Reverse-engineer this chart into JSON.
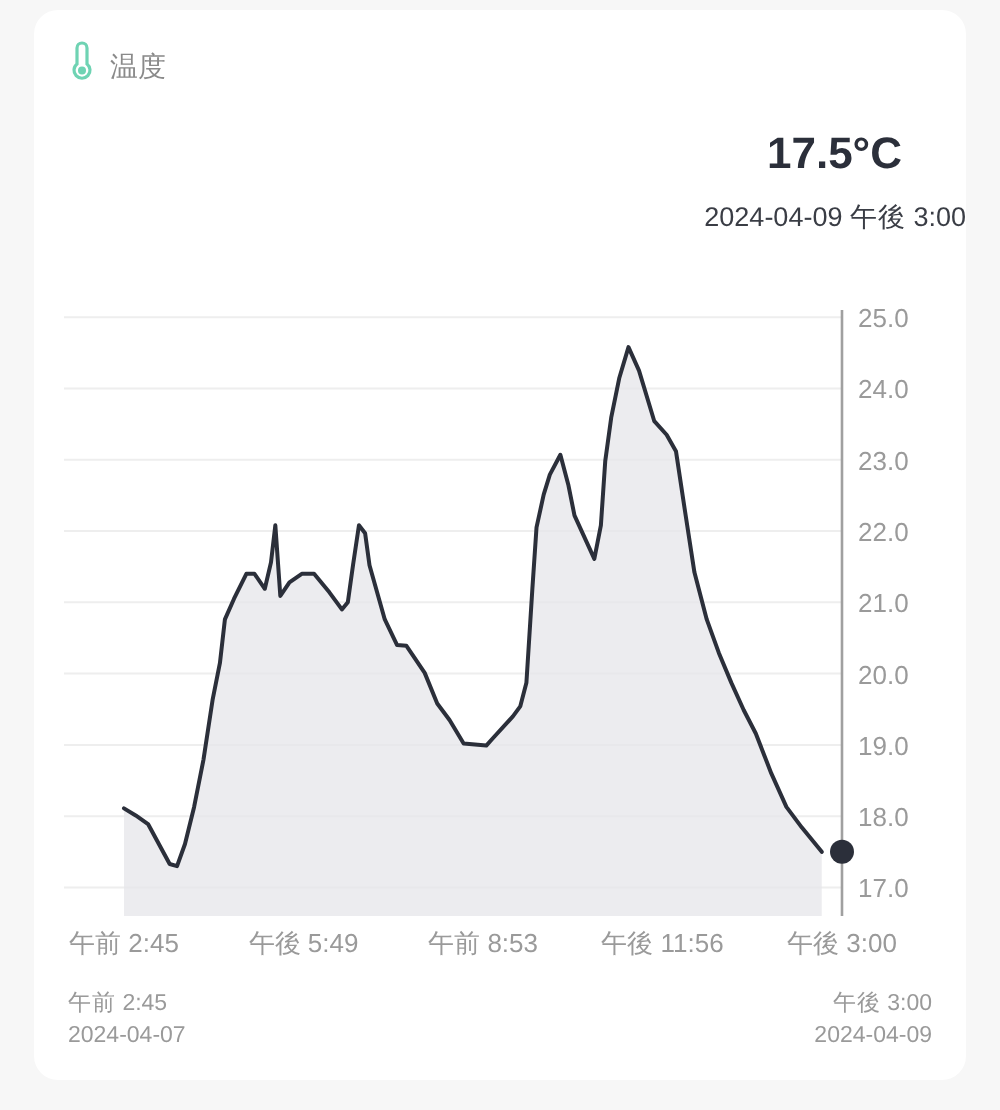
{
  "chart_data": {
    "type": "area",
    "title": "温度",
    "annotations": [
      "17.5°C",
      "2024-04-09 午後 3:00",
      "午前 2:45",
      "2024-04-07",
      "午後 3:00",
      "2024-04-09"
    ],
    "x": [
      "2024-04-07T02:45",
      "2024-04-07T03:44",
      "2024-04-07T04:46",
      "2024-04-07T06:35",
      "2024-04-07T07:12",
      "2024-04-07T07:52",
      "2024-04-07T08:38",
      "2024-04-07T09:25",
      "2024-04-07T10:11",
      "2024-04-07T10:48",
      "2024-04-07T11:13",
      "2024-04-07T11:59",
      "2024-04-07T13:01",
      "2024-04-07T13:42",
      "2024-04-07T14:34",
      "2024-04-07T15:05",
      "2024-04-07T15:27",
      "2024-04-07T15:52",
      "2024-04-07T16:38",
      "2024-04-07T17:40",
      "2024-04-07T18:42",
      "2024-04-07T19:59",
      "2024-04-07T21:02",
      "2024-04-07T21:32",
      "2024-04-07T21:58",
      "2024-04-07T22:28",
      "2024-04-07T22:59",
      "2024-04-07T23:21",
      "2024-04-08T00:38",
      "2024-04-08T01:40",
      "2024-04-08T02:27",
      "2024-04-08T03:59",
      "2024-04-08T05:02",
      "2024-04-08T06:04",
      "2024-04-08T07:15",
      "2024-04-08T09:09",
      "2024-04-08T09:41",
      "2024-04-08T11:23",
      "2024-04-08T12:00",
      "2024-04-08T12:31",
      "2024-04-08T13:01",
      "2024-04-08T13:22",
      "2024-04-08T13:58",
      "2024-04-08T14:29",
      "2024-04-08T15:22",
      "2024-04-08T16:02",
      "2024-04-08T16:33",
      "2024-04-08T17:35",
      "2024-04-08T18:13",
      "2024-04-08T18:46",
      "2024-04-08T19:08",
      "2024-04-08T19:38",
      "2024-04-08T20:19",
      "2024-04-08T21:05",
      "2024-04-08T21:58",
      "2024-04-08T23:15",
      "2024-04-09T00:17",
      "2024-04-09T01:04",
      "2024-04-09T01:50",
      "2024-04-09T02:37",
      "2024-04-09T03:39",
      "2024-04-09T04:40",
      "2024-04-09T05:43",
      "2024-04-09T06:45",
      "2024-04-09T07:46",
      "2024-04-09T09:04",
      "2024-04-09T10:20",
      "2024-04-09T11:38",
      "2024-04-09T13:18"
    ],
    "series": [
      {
        "type": "area",
        "color": "#2b2f3a",
        "values": [
          18.11,
          18.01,
          17.89,
          17.33,
          17.3,
          17.61,
          18.13,
          18.79,
          19.63,
          20.15,
          20.76,
          21.05,
          21.4,
          21.4,
          21.19,
          21.56,
          22.08,
          21.09,
          21.28,
          21.4,
          21.4,
          21.14,
          20.9,
          21.0,
          21.52,
          22.08,
          21.97,
          21.52,
          20.76,
          20.4,
          20.39,
          20.01,
          19.58,
          19.35,
          19.02,
          18.99,
          19.09,
          19.4,
          19.54,
          19.87,
          21.19,
          22.05,
          22.51,
          22.79,
          23.07,
          22.65,
          22.22,
          21.84,
          21.61,
          22.08,
          22.98,
          23.59,
          24.15,
          24.58,
          24.25,
          23.54,
          23.35,
          23.12,
          22.27,
          21.42,
          20.76,
          20.29,
          19.87,
          19.49,
          19.16,
          18.6,
          18.13,
          17.84,
          17.5
        ]
      },
      {
        "type": "scatter",
        "color": "#2b2f3a",
        "marker": "circle",
        "x": [
          "2024-04-09T15:00"
        ],
        "values": [
          17.5
        ]
      }
    ],
    "xlim": [
      "2024-04-07T02:45",
      "2024-04-09T15:00"
    ],
    "xticks": [
      {
        "value": "2024-04-07T02:45",
        "label": "午前 2:45"
      },
      {
        "value": "2024-04-07T17:49",
        "label": "午後 5:49"
      },
      {
        "value": "2024-04-08T08:53",
        "label": "午前 8:53"
      },
      {
        "value": "2024-04-08T23:56",
        "label": "午後 11:56"
      },
      {
        "value": "2024-04-09T15:00",
        "label": "午後 3:00"
      }
    ],
    "ylim": [
      16.6,
      25.1
    ],
    "yticks": [
      {
        "value": 17,
        "label": "17.0"
      },
      {
        "value": 18,
        "label": "18.0"
      },
      {
        "value": 19,
        "label": "19.0"
      },
      {
        "value": 20,
        "label": "20.0"
      },
      {
        "value": 21,
        "label": "21.0"
      },
      {
        "value": 22,
        "label": "22.0"
      },
      {
        "value": 23,
        "label": "23.0"
      },
      {
        "value": 24,
        "label": "24.0"
      },
      {
        "value": 25,
        "label": "25.0"
      }
    ],
    "grid": "y"
  }
}
